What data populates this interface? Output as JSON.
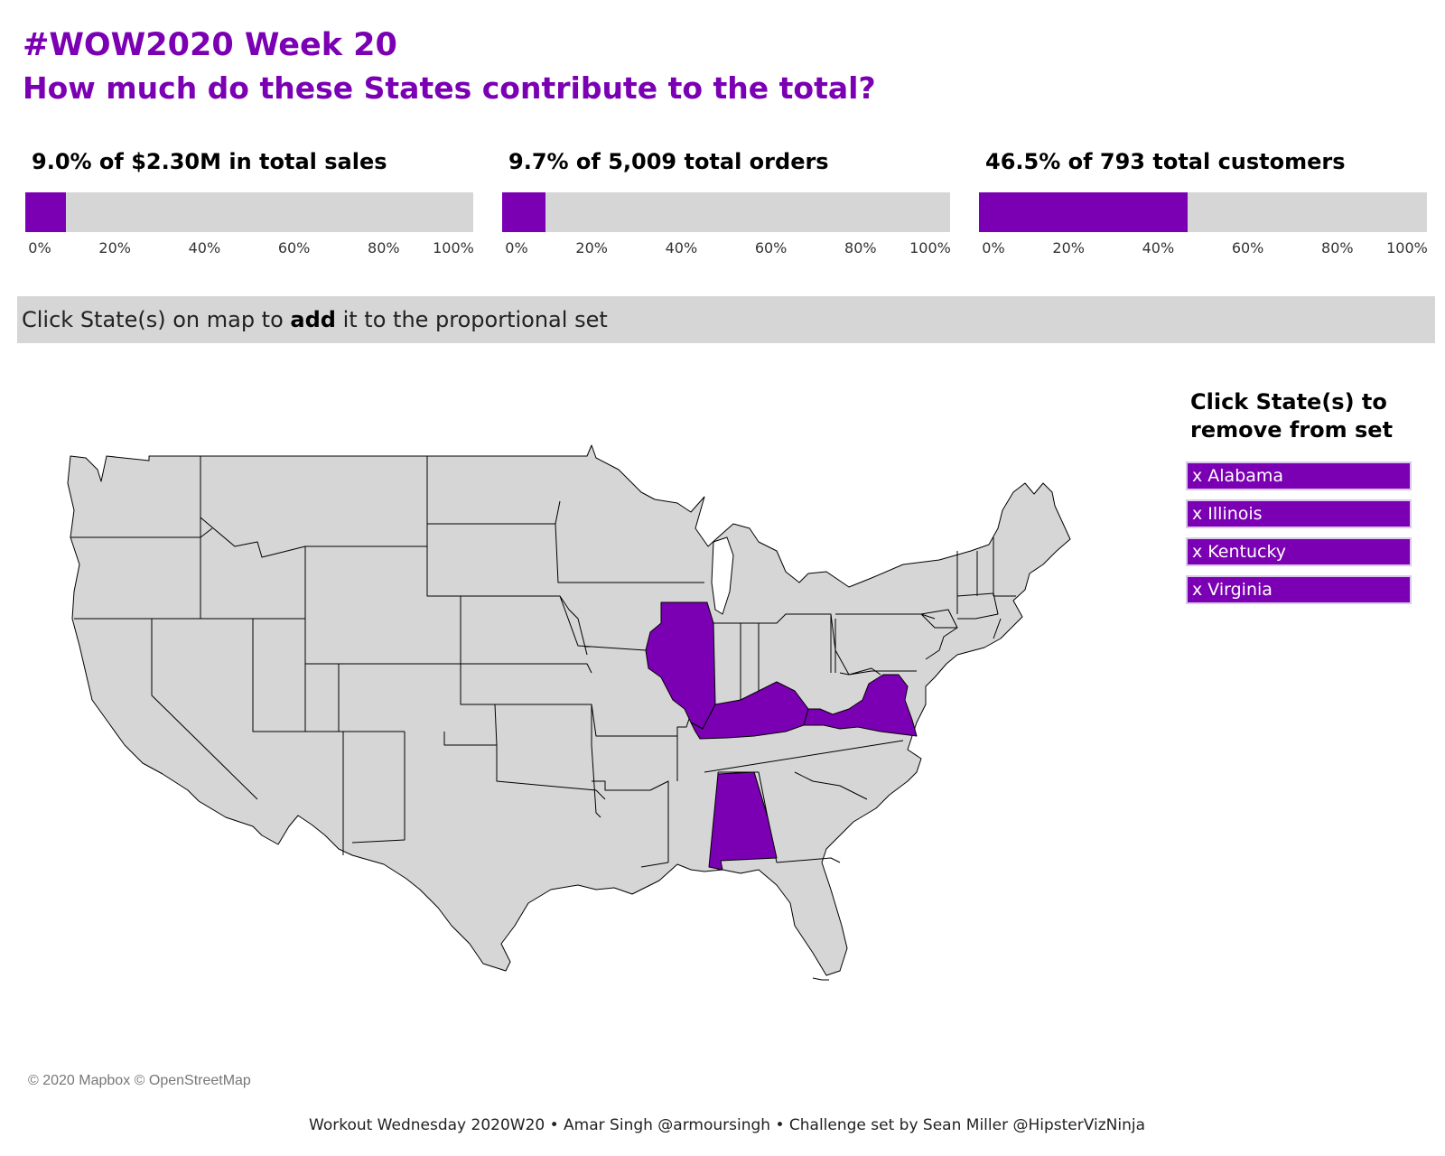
{
  "header": {
    "title_line1": "#WOW2020 Week 20",
    "title_line2": "How much do these States contribute to the total?"
  },
  "colors": {
    "accent": "#7b00b4",
    "track": "#d6d6d6",
    "state_fill": "#d6d6d6"
  },
  "kpis": [
    {
      "label": "9.0% of $2.30M in total sales",
      "value_pct": 9.0
    },
    {
      "label": "9.7% of 5,009 total orders",
      "value_pct": 9.7
    },
    {
      "label": "46.5% of 793 total customers",
      "value_pct": 46.5
    }
  ],
  "axis_ticks": [
    "0%",
    "20%",
    "40%",
    "60%",
    "80%",
    "100%"
  ],
  "banner": {
    "prefix": "Click State(s) on map to ",
    "bold": "add",
    "suffix": " it to the proportional set"
  },
  "map": {
    "highlighted_states": [
      "Alabama",
      "Illinois",
      "Kentucky",
      "Virginia"
    ],
    "attribution": "© 2020 Mapbox © OpenStreetMap"
  },
  "remove_panel": {
    "title_line1": "Click State(s) to",
    "title_line2": "remove from set",
    "items": [
      "x Alabama",
      "x Illinois",
      "x Kentucky",
      "x Virginia"
    ]
  },
  "footer": "Workout Wednesday 2020W20 • Amar Singh @armoursingh • Challenge set by Sean Miller @HipsterVizNinja"
}
